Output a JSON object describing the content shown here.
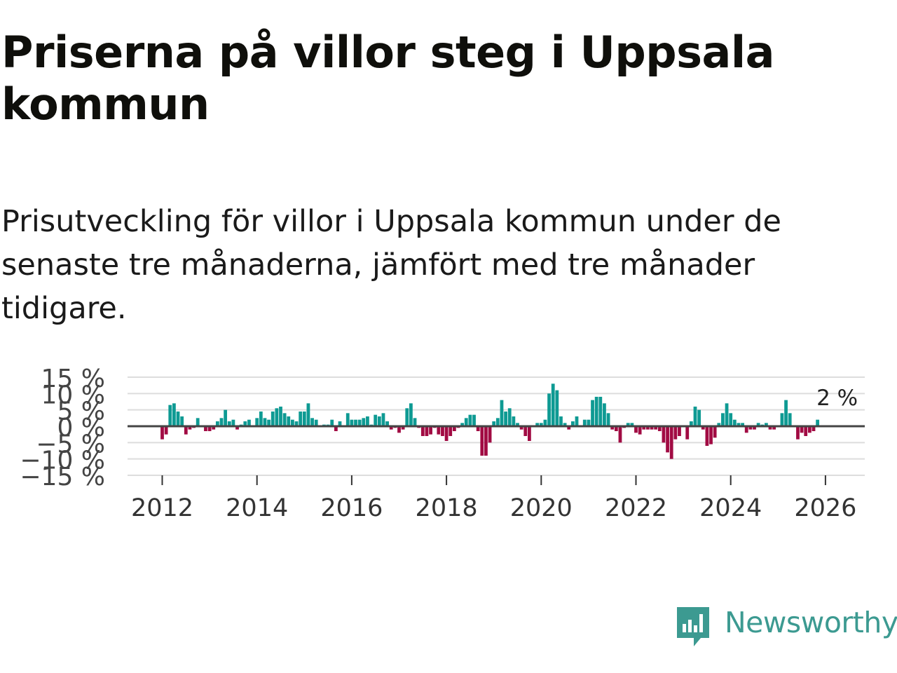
{
  "title": "Priserna på villor steg i Uppsala kommun",
  "subtitle": "Prisutveckling för villor i Uppsala kommun under de senaste tre månaderna, jämfört med tre månader tidigare.",
  "brand": {
    "name": "Newsworthy",
    "color": "#3c9a91",
    "icon": "newsworthy-logo-icon"
  },
  "colors": {
    "positive": "#0e9a93",
    "negative": "#a10b43",
    "grid": "#dddddd",
    "zero_line": "#444444"
  },
  "chart_data": {
    "type": "bar",
    "ylim": [
      -15,
      15
    ],
    "yticks": [
      -15,
      -10,
      -5,
      0,
      5,
      10,
      15
    ],
    "ytick_labels": [
      "−15 %",
      "−10 %",
      "−5 %",
      "0 %",
      "5 %",
      "10 %",
      "15 %"
    ],
    "xticks": [
      2012,
      2014,
      2016,
      2018,
      2020,
      2022,
      2024,
      2026
    ],
    "xtick_labels": [
      "2012",
      "2014",
      "2016",
      "2018",
      "2020",
      "2022",
      "2024",
      "2026"
    ],
    "start_date": "2012-01",
    "last_label": "2 %",
    "grid": true,
    "values": [
      -4,
      -2.5,
      6.5,
      7,
      4.5,
      3,
      -2.5,
      -1,
      -0.5,
      2.5,
      0,
      -1.5,
      -1.5,
      -1,
      1.5,
      2.5,
      5,
      1.5,
      2,
      -1,
      0.5,
      1.5,
      2,
      0,
      2.5,
      4.5,
      2.5,
      2,
      4.5,
      5.5,
      6,
      4,
      3,
      2,
      1.5,
      4.5,
      4.5,
      7,
      2.5,
      2,
      0,
      0.5,
      0.5,
      2,
      -1.5,
      1.5,
      0,
      4,
      2,
      2,
      2,
      2.5,
      3,
      0.5,
      3.5,
      3,
      4,
      1.5,
      -1,
      -0.5,
      -2,
      -1,
      5.5,
      7,
      2.5,
      -0.5,
      -3,
      -3,
      -2.5,
      -0.5,
      -2.5,
      -3,
      -4.5,
      -3,
      -1.5,
      -0.5,
      1,
      2.5,
      3.5,
      3.5,
      -1.5,
      -9,
      -9,
      -5,
      1.5,
      2.5,
      8,
      4.5,
      5.5,
      3,
      1,
      -1,
      -3,
      -4.5,
      0,
      1,
      1,
      2,
      10,
      13,
      11,
      3,
      1,
      -1,
      1.5,
      3,
      0,
      2,
      2,
      8,
      9,
      9,
      7,
      4,
      -1,
      -1.5,
      -5,
      -0.5,
      1,
      1,
      -2,
      -2.5,
      -1,
      -1,
      -1,
      -1,
      -1.5,
      -5,
      -8,
      -10,
      -4,
      -3,
      0,
      -4,
      1.5,
      6,
      5,
      -1,
      -6,
      -5.5,
      -3.5,
      1,
      4,
      7,
      4,
      2,
      1,
      1,
      -2,
      -1,
      -1,
      1,
      0.5,
      1,
      -1,
      -1,
      0,
      4,
      8,
      4,
      0,
      -4,
      -2,
      -3,
      -2,
      -1.5,
      2
    ]
  }
}
